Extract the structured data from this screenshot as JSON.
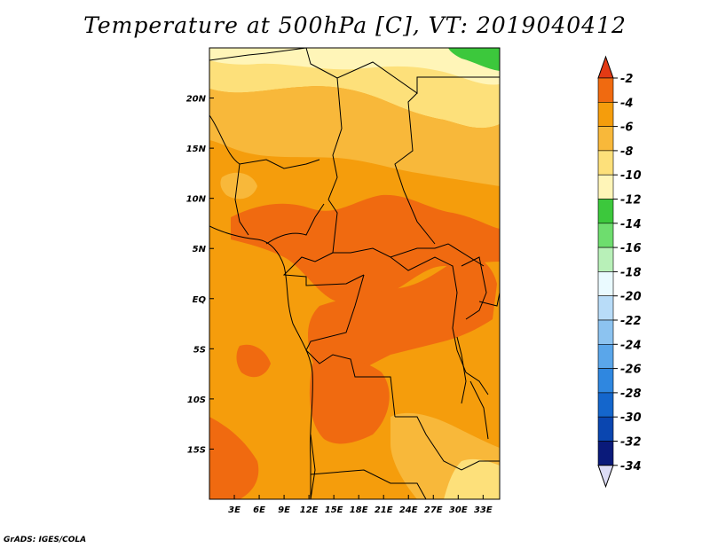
{
  "title": "Temperature at 500hPa [C], VT: 2019040412",
  "credit": "GrADS: IGES/COLA",
  "map": {
    "lon_range": [
      0,
      35
    ],
    "lat_range": [
      -20,
      25
    ],
    "x_ticks": [
      {
        "value": 3,
        "label": "3E"
      },
      {
        "value": 6,
        "label": "6E"
      },
      {
        "value": 9,
        "label": "9E"
      },
      {
        "value": 12,
        "label": "12E"
      },
      {
        "value": 15,
        "label": "15E"
      },
      {
        "value": 18,
        "label": "18E"
      },
      {
        "value": 21,
        "label": "21E"
      },
      {
        "value": 24,
        "label": "24E"
      },
      {
        "value": 27,
        "label": "27E"
      },
      {
        "value": 30,
        "label": "30E"
      },
      {
        "value": 33,
        "label": "33E"
      }
    ],
    "y_ticks": [
      {
        "value": 20,
        "label": "20N"
      },
      {
        "value": 15,
        "label": "15N"
      },
      {
        "value": 10,
        "label": "10N"
      },
      {
        "value": 5,
        "label": "5N"
      },
      {
        "value": 0,
        "label": "EQ"
      },
      {
        "value": -5,
        "label": "5S"
      },
      {
        "value": -10,
        "label": "10S"
      },
      {
        "value": -15,
        "label": "15S"
      }
    ]
  },
  "colorbar": {
    "labels": [
      "-2",
      "-4",
      "-6",
      "-8",
      "-10",
      "-12",
      "-14",
      "-16",
      "-18",
      "-20",
      "-22",
      "-24",
      "-26",
      "-28",
      "-30",
      "-32",
      "-34"
    ],
    "colors": [
      "#e33a14",
      "#f06a10",
      "#f59d0c",
      "#f8b83a",
      "#fde07a",
      "#fff5b8",
      "#3cc83c",
      "#6edd6e",
      "#b8f0b8",
      "#eafaff",
      "#b8dcf8",
      "#8cc3f0",
      "#5aa6ea",
      "#2f87e0",
      "#1466cc",
      "#0a46b0",
      "#0a1a7a"
    ],
    "top_color": "#e33a14",
    "bottom_color": "#dcdcf5"
  }
}
